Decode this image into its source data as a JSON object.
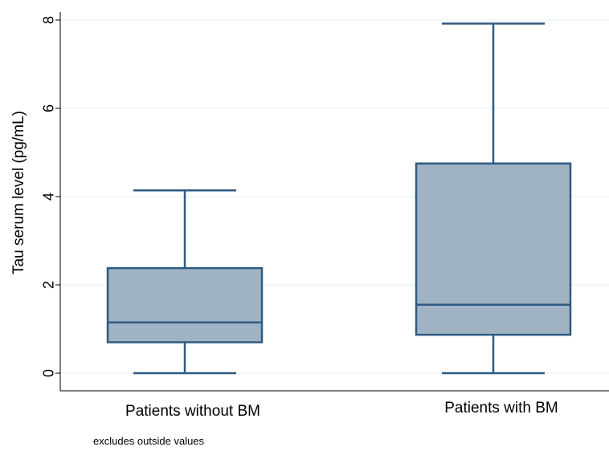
{
  "chart_data": {
    "type": "box",
    "ylabel": "Tau serum level (pg/mL)",
    "ylim": [
      0,
      8
    ],
    "yticks": [
      0,
      2,
      4,
      6,
      8
    ],
    "grid": true,
    "categories": [
      "Patients without BM",
      "Patients with BM"
    ],
    "boxes": [
      {
        "category": "Patients without BM",
        "min": 0.0,
        "q1": 0.7,
        "median": 1.15,
        "q3": 2.38,
        "max": 4.14
      },
      {
        "category": "Patients with BM",
        "min": 0.0,
        "q1": 0.87,
        "median": 1.55,
        "q3": 4.75,
        "max": 7.92
      }
    ],
    "box_fill": "#9fb3c4",
    "box_stroke": "#2f5b82",
    "grid_color": "#e6eef3",
    "footnote": "excludes outside values"
  }
}
